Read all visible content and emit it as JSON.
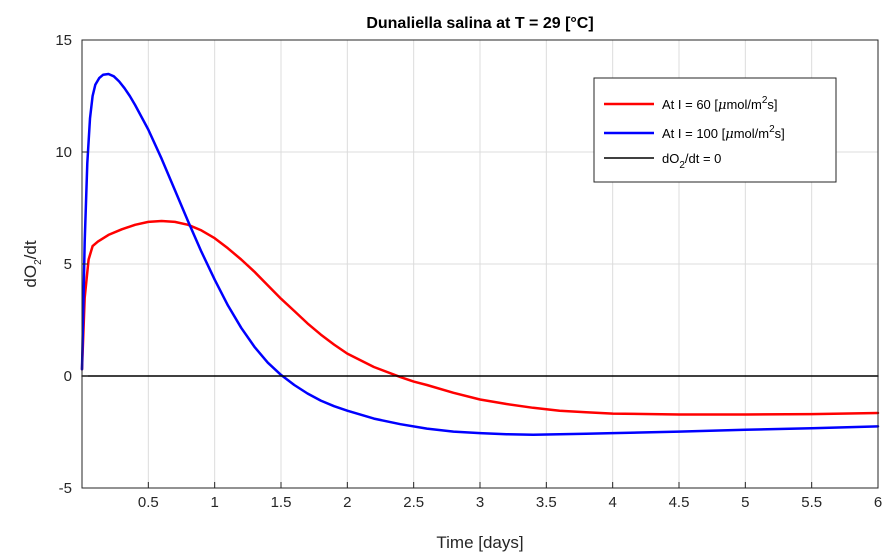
{
  "chart_data": {
    "type": "line",
    "title": "Dunaliella salina at T = 29 [°C]",
    "xlabel": "Time [days]",
    "ylabel": {
      "base": "dO",
      "sub": "2",
      "rest": "/dt"
    },
    "xlim": [
      0,
      6
    ],
    "ylim": [
      -5,
      15
    ],
    "x_ticks": [
      0.5,
      1,
      1.5,
      2,
      2.5,
      3,
      3.5,
      4,
      4.5,
      5,
      5.5,
      6
    ],
    "x_tick_labels": [
      "0.5",
      "1",
      "1.5",
      "2",
      "2.5",
      "3",
      "3.5",
      "4",
      "4.5",
      "5",
      "5.5",
      "6"
    ],
    "y_ticks": [
      -5,
      0,
      5,
      10,
      15
    ],
    "y_tick_labels": [
      "-5",
      "0",
      "5",
      "10",
      "15"
    ],
    "grid": true,
    "legend_position": "top-right",
    "series": [
      {
        "name": "At I = 60 [μmol/m2s]",
        "legend": {
          "pre": "At I = 60 [",
          "mu": "μ",
          "post": "mol/m",
          "sup": "2",
          "end": "s]"
        },
        "color": "#ff0000",
        "x": [
          0,
          0.02,
          0.05,
          0.08,
          0.12,
          0.2,
          0.3,
          0.4,
          0.5,
          0.6,
          0.7,
          0.8,
          0.9,
          1.0,
          1.1,
          1.2,
          1.3,
          1.4,
          1.5,
          1.6,
          1.7,
          1.8,
          1.9,
          2.0,
          2.2,
          2.4,
          2.5,
          2.6,
          2.8,
          3.0,
          3.2,
          3.4,
          3.6,
          3.8,
          4.0,
          4.5,
          5.0,
          5.5,
          6.0
        ],
        "y": [
          0.3,
          3.5,
          5.2,
          5.8,
          6.0,
          6.3,
          6.55,
          6.75,
          6.88,
          6.92,
          6.88,
          6.75,
          6.5,
          6.15,
          5.7,
          5.2,
          4.65,
          4.05,
          3.45,
          2.9,
          2.35,
          1.85,
          1.4,
          1.0,
          0.4,
          -0.05,
          -0.25,
          -0.4,
          -0.75,
          -1.05,
          -1.25,
          -1.42,
          -1.55,
          -1.62,
          -1.68,
          -1.72,
          -1.72,
          -1.7,
          -1.65
        ]
      },
      {
        "name": "At I = 100 [μmol/m2s]",
        "legend": {
          "pre": "At I = 100 [",
          "mu": "μ",
          "post": "mol/m",
          "sup": "2",
          "end": "s]"
        },
        "color": "#0000ff",
        "x": [
          0,
          0.02,
          0.04,
          0.06,
          0.08,
          0.1,
          0.13,
          0.16,
          0.2,
          0.24,
          0.28,
          0.32,
          0.36,
          0.4,
          0.5,
          0.6,
          0.7,
          0.8,
          0.9,
          1.0,
          1.1,
          1.2,
          1.3,
          1.4,
          1.5,
          1.6,
          1.7,
          1.8,
          1.9,
          2.0,
          2.2,
          2.4,
          2.6,
          2.8,
          3.0,
          3.2,
          3.4,
          3.6,
          3.8,
          4.0,
          4.5,
          5.0,
          5.5,
          6.0
        ],
        "y": [
          0.3,
          6.0,
          9.5,
          11.5,
          12.5,
          13.0,
          13.3,
          13.45,
          13.48,
          13.38,
          13.15,
          12.85,
          12.5,
          12.1,
          11.0,
          9.7,
          8.3,
          6.9,
          5.55,
          4.3,
          3.15,
          2.15,
          1.3,
          0.6,
          0.05,
          -0.4,
          -0.78,
          -1.1,
          -1.35,
          -1.55,
          -1.9,
          -2.15,
          -2.35,
          -2.48,
          -2.55,
          -2.6,
          -2.62,
          -2.6,
          -2.58,
          -2.55,
          -2.48,
          -2.4,
          -2.33,
          -2.25
        ]
      },
      {
        "name": "dO2/dt = 0",
        "legend": {
          "pre": "dO",
          "sub": "2",
          "post": "/dt = 0"
        },
        "color": "#000000",
        "x": [
          0,
          6
        ],
        "y": [
          0,
          0
        ]
      }
    ]
  }
}
